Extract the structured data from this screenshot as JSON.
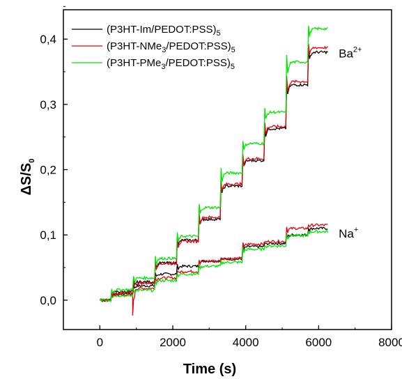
{
  "chart_data": {
    "type": "line",
    "xlabel": "Time (s)",
    "ylabel": {
      "main": "ΔS/S",
      "sub": "0"
    },
    "xlim": [
      -1000,
      8000
    ],
    "ylim": [
      -0.045,
      0.445
    ],
    "xticks": [
      0,
      2000,
      4000,
      6000,
      8000
    ],
    "xtick_labels": [
      "0",
      "2000",
      "4000",
      "6000",
      "8000"
    ],
    "yticks": [
      0.0,
      0.1,
      0.2,
      0.3,
      0.4
    ],
    "ytick_labels": [
      "0,0",
      "0,1",
      "0,2",
      "0,3",
      "0,4"
    ],
    "legend_position": "top-left",
    "series": [
      {
        "name": "(P3HT-Im/PEDOT:PSS)5",
        "label": {
          "a": "(P3HT-Im/PEDOT:PSS)",
          "s1": "",
          "b": "",
          "s2": "5"
        },
        "color": "#000000"
      },
      {
        "name": "(P3HT-NMe3/PEDOT:PSS)5",
        "label": {
          "a": "(P3HT-NMe",
          "s1": "3",
          "b": "/PEDOT:PSS)",
          "s2": "5"
        },
        "color": "#e8000b"
      },
      {
        "name": "(P3HT-PMe3/PEDOT:PSS)5",
        "label": {
          "a": "(P3HT-PMe",
          "s1": "3",
          "b": "/PEDOT:PSS)",
          "s2": "5"
        },
        "color": "#00e600"
      }
    ],
    "annotations": [
      {
        "text": "Ba",
        "sup": "2+",
        "x": 6550,
        "y": 0.372
      },
      {
        "text": "Na",
        "sup": "+",
        "x": 6550,
        "y": 0.096
      }
    ],
    "step_times": [
      0,
      300,
      900,
      1500,
      2100,
      2700,
      3300,
      3900,
      4500,
      5100,
      5700,
      6250
    ],
    "curves": {
      "ba": {
        "black": [
          0.0,
          0.013,
          0.028,
          0.057,
          0.092,
          0.124,
          0.175,
          0.214,
          0.263,
          0.33,
          0.38
        ],
        "red": [
          0.0,
          0.011,
          0.026,
          0.056,
          0.09,
          0.127,
          0.178,
          0.217,
          0.266,
          0.335,
          0.387
        ],
        "green": [
          0.0,
          0.016,
          0.034,
          0.064,
          0.098,
          0.142,
          0.195,
          0.24,
          0.288,
          0.365,
          0.416
        ]
      },
      "na": {
        "black": [
          0.0,
          0.01,
          0.022,
          0.04,
          0.052,
          0.06,
          0.063,
          0.082,
          0.087,
          0.1,
          0.11
        ],
        "red": [
          0.0,
          0.008,
          0.018,
          0.034,
          0.044,
          0.06,
          0.064,
          0.086,
          0.09,
          0.11,
          0.115
        ],
        "green": [
          0.0,
          0.007,
          0.015,
          0.03,
          0.04,
          0.052,
          0.058,
          0.078,
          0.083,
          0.099,
          0.105
        ]
      }
    }
  }
}
